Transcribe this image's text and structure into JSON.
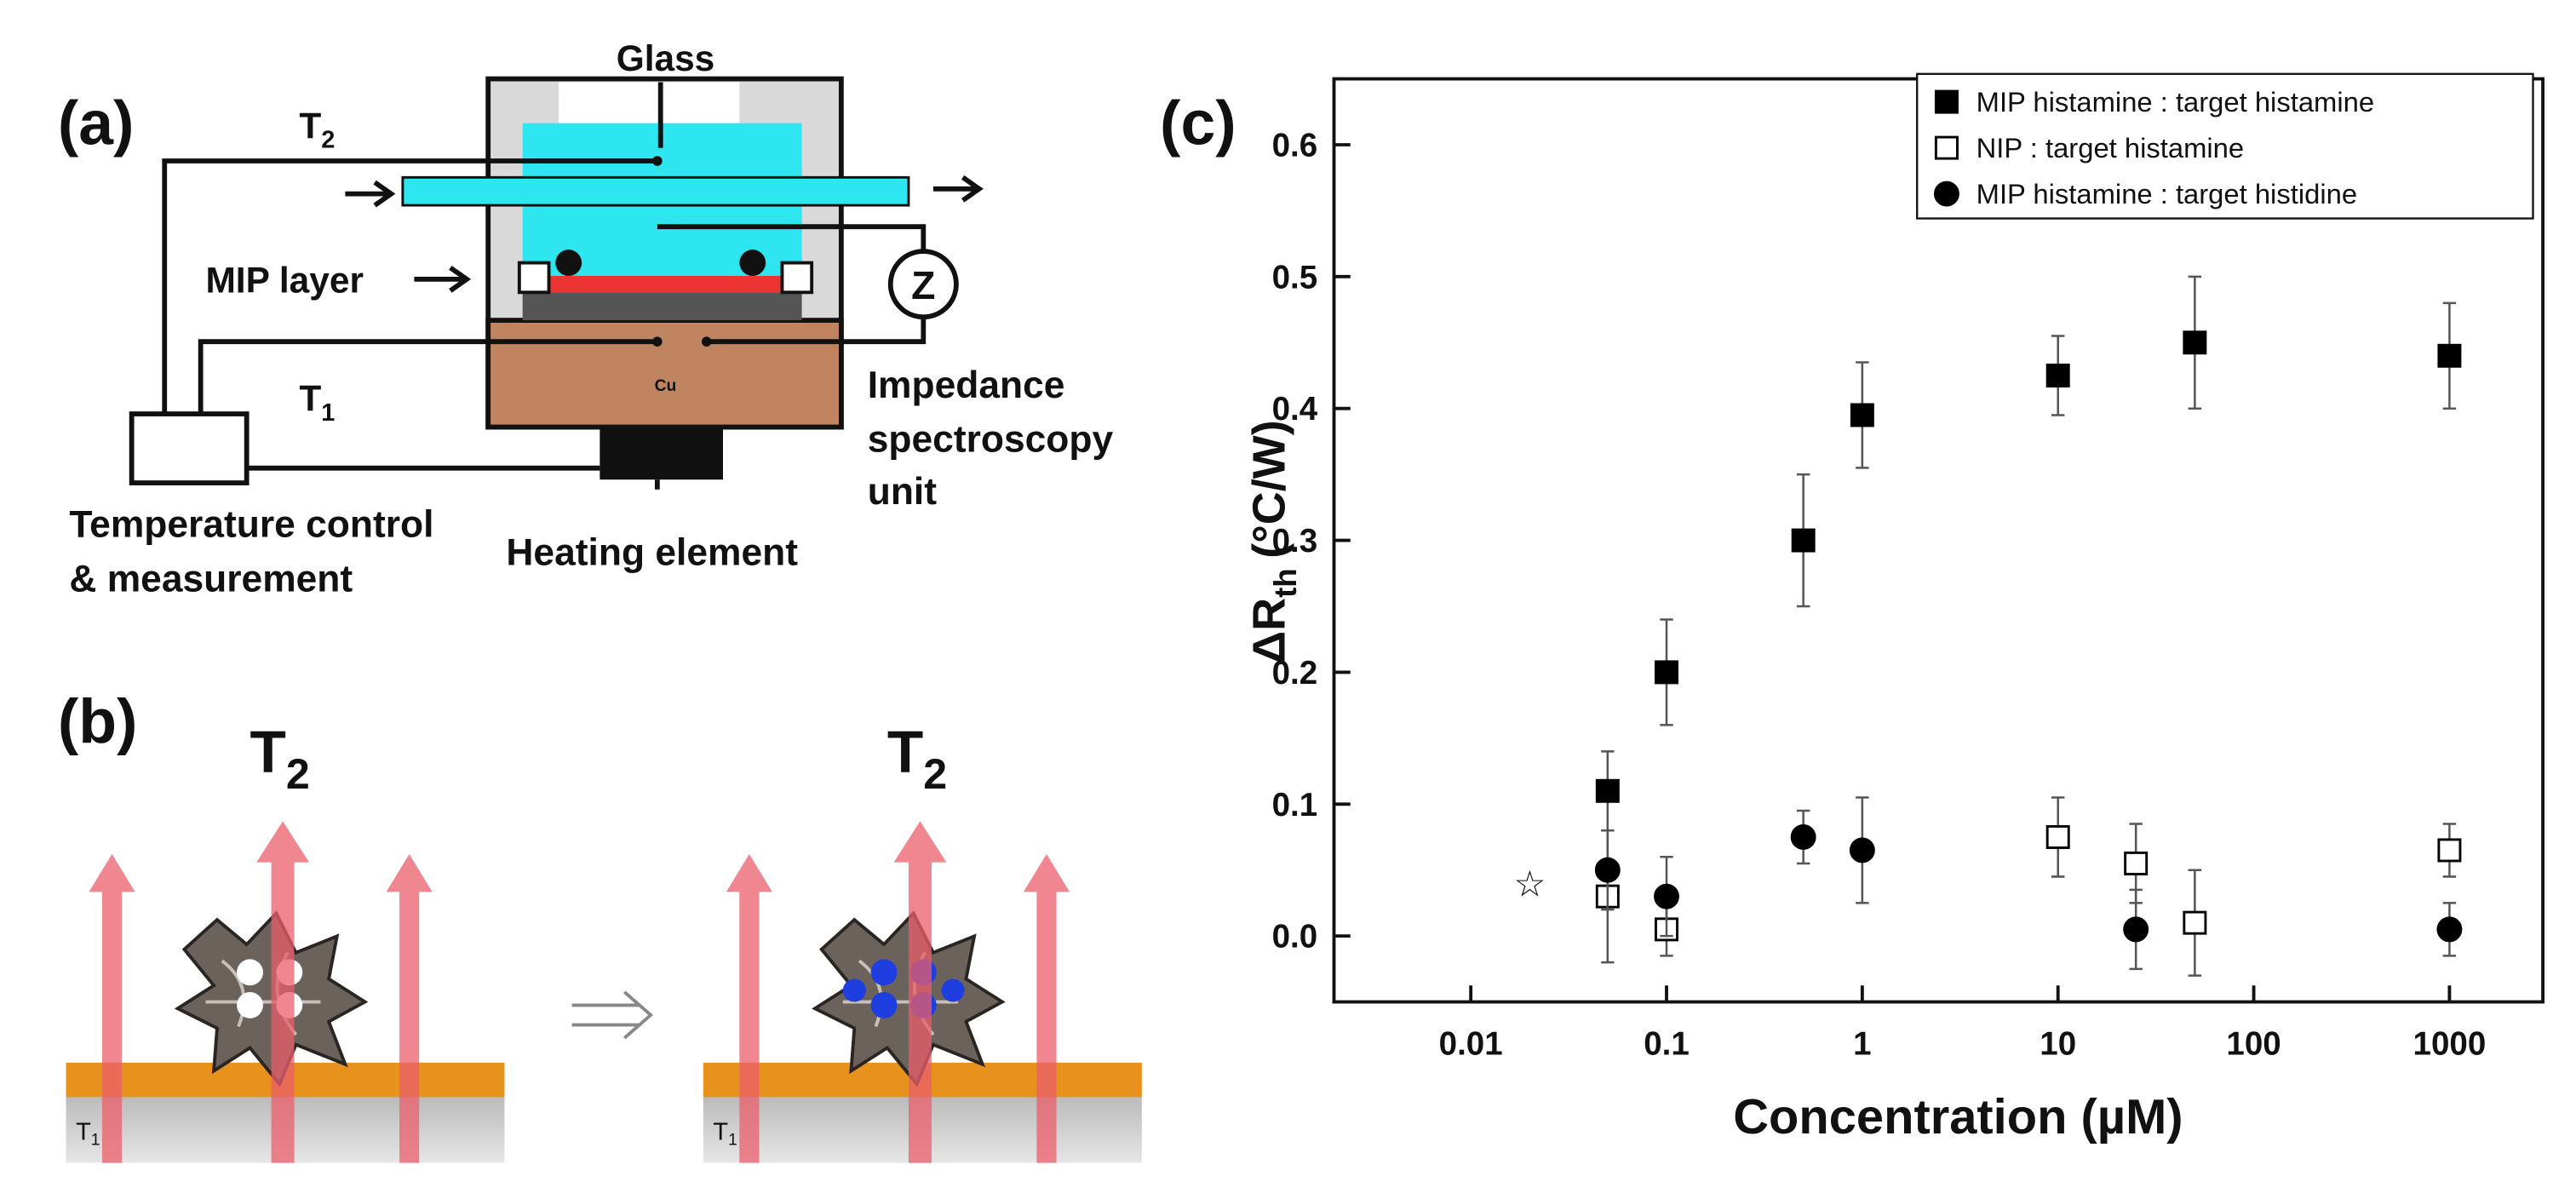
{
  "panel_a": {
    "label": "(a)",
    "glass": "Glass",
    "t2": {
      "main": "T",
      "sub": "2"
    },
    "mip_layer": "MIP layer",
    "cu": "Cu",
    "z": "Z",
    "t1": {
      "main": "T",
      "sub": "1"
    },
    "impedance": [
      "Impedance",
      "spectroscopy",
      "unit"
    ],
    "temperature": [
      "Temperature control",
      "& measurement"
    ],
    "heating": "Heating element"
  },
  "panel_b": {
    "label": "(b)",
    "t2_left": {
      "main": "T",
      "sub": "2"
    },
    "t2_right": {
      "main": "T",
      "sub": "2"
    },
    "t1_left": {
      "main": "T",
      "sub": "1"
    },
    "t1_right": {
      "main": "T",
      "sub": "1"
    }
  },
  "chart_data": {
    "type": "scatter",
    "panel_label": "(c)",
    "x_label": "Concentration (µM)",
    "y_label": {
      "main": "ΔR",
      "sub": "th",
      "unit": "(°C/W)"
    },
    "xscale": "log",
    "xlim": [
      0.002,
      3000
    ],
    "ylim": [
      -0.05,
      0.65
    ],
    "xticks": [
      0.01,
      0.1,
      1,
      10,
      100,
      1000
    ],
    "yticks": [
      {
        "value": 0,
        "label": "0.0"
      },
      0.1,
      0.2,
      0.3,
      0.4,
      0.5,
      0.6
    ],
    "legend": "upper right",
    "series": [
      {
        "name": "MIP histamine : target histamine",
        "marker": "square-filled",
        "color": "#000000",
        "x": [
          0.05,
          0.1,
          0.5,
          1,
          10,
          50,
          1000
        ],
        "values": [
          0.11,
          0.2,
          0.3,
          0.395,
          0.425,
          0.45,
          0.44
        ],
        "errors": [
          0.03,
          0.04,
          0.05,
          0.04,
          0.03,
          0.05,
          0.04
        ]
      },
      {
        "name": "NIP  : target histamine",
        "marker": "square-open",
        "color": "#000000",
        "x": [
          0.05,
          0.1,
          10,
          25,
          50,
          1000
        ],
        "values": [
          0.03,
          0.005,
          0.075,
          0.055,
          0.01,
          0.065
        ],
        "errors": [
          0.05,
          0.02,
          0.03,
          0.03,
          0.04,
          0.02
        ]
      },
      {
        "name": "MIP histamine : target histidine",
        "marker": "circle-filled",
        "color": "#000000",
        "x": [
          0.05,
          0.1,
          0.5,
          1,
          25,
          1000
        ],
        "values": [
          0.05,
          0.03,
          0.075,
          0.065,
          0.005,
          0.005
        ],
        "errors": [
          0.03,
          0.03,
          0.02,
          0.04,
          0.03,
          0.02
        ]
      }
    ],
    "annotation": {
      "text": "☆",
      "x": 0.02,
      "y": 0.04
    }
  }
}
